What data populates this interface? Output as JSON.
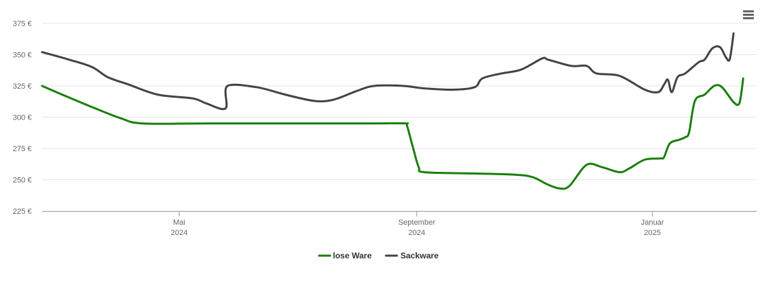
{
  "chart_data": {
    "type": "line",
    "title": "",
    "xlabel": "",
    "ylabel": "",
    "ylim": [
      225,
      375
    ],
    "y_ticks": [
      225,
      250,
      275,
      300,
      325,
      350,
      375
    ],
    "y_tick_labels": [
      "225 €",
      "250 €",
      "275 €",
      "300 €",
      "325 €",
      "350 €",
      "375 €"
    ],
    "xlim": [
      "2024-02-20",
      "2025-02-24"
    ],
    "x_ticks": [
      {
        "date": "2024-05-01",
        "line1": "Mai",
        "line2": "2024"
      },
      {
        "date": "2024-09-01",
        "line1": "September",
        "line2": "2024"
      },
      {
        "date": "2025-01-01",
        "line1": "Januar",
        "line2": "2025"
      }
    ],
    "grid": true,
    "legend_position": "bottom-center",
    "series": [
      {
        "name": "lose Ware",
        "color": "#1a7f0d",
        "points": [
          [
            "2024-02-20",
            325
          ],
          [
            "2024-03-03",
            317
          ],
          [
            "2024-03-17",
            308
          ],
          [
            "2024-04-01",
            299
          ],
          [
            "2024-04-12",
            295
          ],
          [
            "2024-05-15",
            295
          ],
          [
            "2024-07-01",
            295
          ],
          [
            "2024-08-10",
            295
          ],
          [
            "2024-08-26",
            295
          ],
          [
            "2024-08-27",
            293
          ],
          [
            "2024-08-30",
            276
          ],
          [
            "2024-09-02",
            260
          ],
          [
            "2024-09-05",
            256
          ],
          [
            "2024-09-30",
            255
          ],
          [
            "2024-10-22",
            254
          ],
          [
            "2024-10-31",
            252
          ],
          [
            "2024-11-08",
            246
          ],
          [
            "2024-11-14",
            243
          ],
          [
            "2024-11-19",
            245
          ],
          [
            "2024-11-28",
            262
          ],
          [
            "2024-12-06",
            260
          ],
          [
            "2024-12-15",
            256
          ],
          [
            "2024-12-20",
            259
          ],
          [
            "2024-12-28",
            266
          ],
          [
            "2025-01-05",
            267
          ],
          [
            "2025-01-07",
            268
          ],
          [
            "2025-01-10",
            279
          ],
          [
            "2025-01-15",
            282
          ],
          [
            "2025-01-18",
            284
          ],
          [
            "2025-01-20",
            288
          ],
          [
            "2025-01-23",
            313
          ],
          [
            "2025-01-28",
            318
          ],
          [
            "2025-02-02",
            325
          ],
          [
            "2025-02-06",
            324
          ],
          [
            "2025-02-12",
            312
          ],
          [
            "2025-02-15",
            311
          ],
          [
            "2025-02-17",
            331
          ]
        ]
      },
      {
        "name": "Sackware",
        "color": "#434348",
        "points": [
          [
            "2024-02-20",
            352
          ],
          [
            "2024-03-05",
            346
          ],
          [
            "2024-03-17",
            340
          ],
          [
            "2024-03-25",
            332
          ],
          [
            "2024-04-05",
            326
          ],
          [
            "2024-04-20",
            318
          ],
          [
            "2024-05-08",
            315
          ],
          [
            "2024-05-15",
            311
          ],
          [
            "2024-05-25",
            307
          ],
          [
            "2024-05-26",
            325
          ],
          [
            "2024-06-10",
            324
          ],
          [
            "2024-06-25",
            318
          ],
          [
            "2024-07-10",
            313
          ],
          [
            "2024-07-20",
            314
          ],
          [
            "2024-08-01",
            321
          ],
          [
            "2024-08-10",
            325
          ],
          [
            "2024-08-25",
            325
          ],
          [
            "2024-09-05",
            323
          ],
          [
            "2024-09-20",
            322
          ],
          [
            "2024-10-01",
            324
          ],
          [
            "2024-10-05",
            331
          ],
          [
            "2024-10-15",
            335
          ],
          [
            "2024-10-25",
            338
          ],
          [
            "2024-11-05",
            347
          ],
          [
            "2024-11-08",
            346
          ],
          [
            "2024-11-20",
            341
          ],
          [
            "2024-11-28",
            341
          ],
          [
            "2024-12-03",
            335
          ],
          [
            "2024-12-15",
            333
          ],
          [
            "2024-12-28",
            322
          ],
          [
            "2025-01-04",
            320
          ],
          [
            "2025-01-07",
            326
          ],
          [
            "2025-01-09",
            330
          ],
          [
            "2025-01-11",
            320
          ],
          [
            "2025-01-14",
            332
          ],
          [
            "2025-01-18",
            335
          ],
          [
            "2025-01-25",
            344
          ],
          [
            "2025-01-28",
            346
          ],
          [
            "2025-02-01",
            355
          ],
          [
            "2025-02-05",
            356
          ],
          [
            "2025-02-08",
            348
          ],
          [
            "2025-02-10",
            346
          ],
          [
            "2025-02-12",
            367
          ]
        ]
      }
    ]
  },
  "menu": {
    "icon": "hamburger-menu-icon"
  }
}
